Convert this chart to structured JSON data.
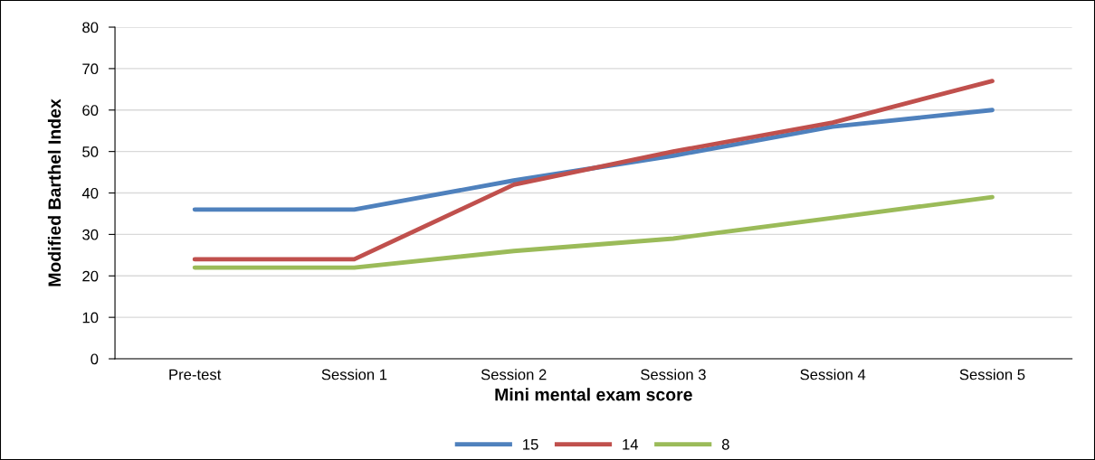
{
  "chart_data": {
    "type": "line",
    "xlabel": "Mini mental exam score",
    "ylabel": "Modified Barthel Index",
    "categories": [
      "Pre-test",
      "Session 1",
      "Session 2",
      "Session 3",
      "Session 4",
      "Session 5"
    ],
    "series": [
      {
        "name": "15",
        "color": "#4f81bd",
        "values": [
          36,
          36,
          43,
          49,
          56,
          60
        ]
      },
      {
        "name": "14",
        "color": "#c0504d",
        "values": [
          24,
          24,
          42,
          50,
          57,
          67
        ]
      },
      {
        "name": "8",
        "color": "#9bbb59",
        "values": [
          22,
          22,
          26,
          29,
          34,
          39
        ]
      }
    ],
    "ylim": [
      0,
      80
    ],
    "yticks": [
      0,
      10,
      20,
      30,
      40,
      50,
      60,
      70,
      80
    ],
    "grid": "y",
    "legend": "bottom",
    "marker": "none",
    "line_style": "solid"
  }
}
